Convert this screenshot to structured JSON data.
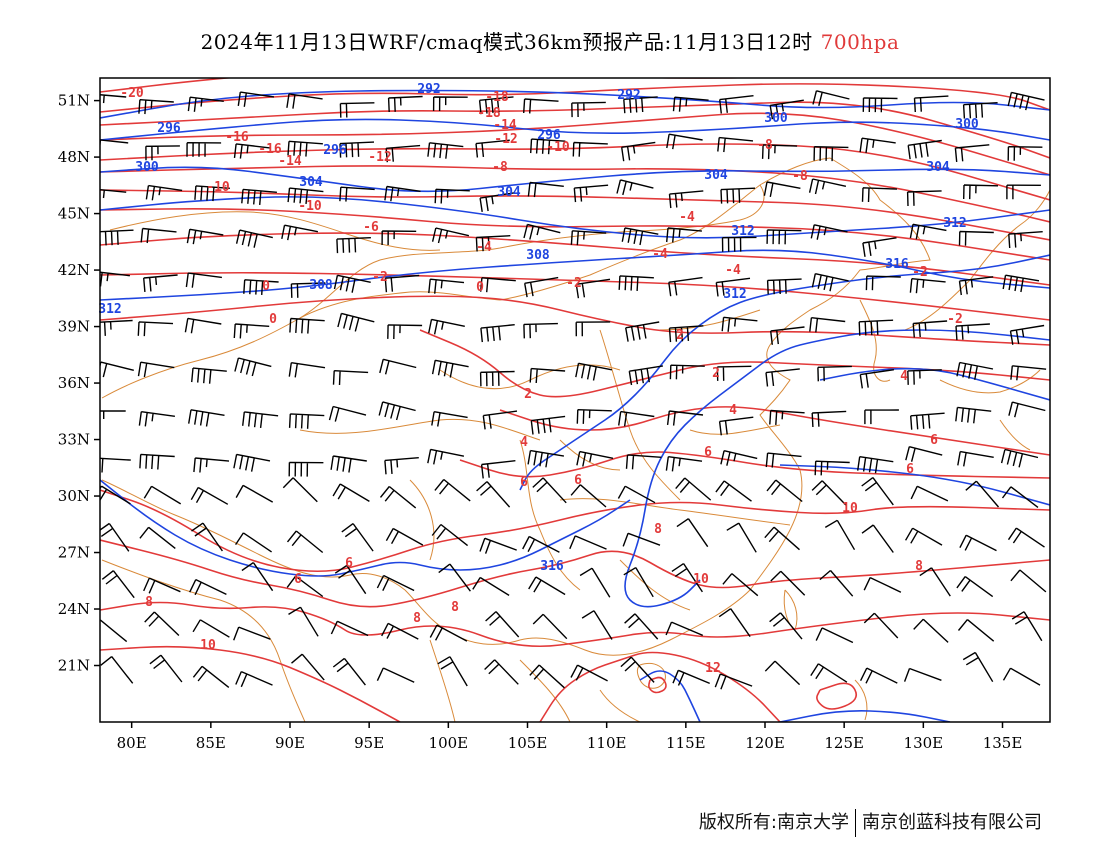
{
  "title": {
    "main": "2024年11月13日WRF/cmaq模式36km预报产品:11月13日12时",
    "level": "700hpa",
    "level_color": "#e03a3a"
  },
  "footer": {
    "left": "版权所有:南京大学",
    "right": "南京创蓝科技有限公司"
  },
  "axes": {
    "lon_labels": [
      "80E",
      "85E",
      "90E",
      "95E",
      "100E",
      "105E",
      "110E",
      "115E",
      "120E",
      "125E",
      "130E",
      "135E"
    ],
    "lon_values": [
      80,
      85,
      90,
      95,
      100,
      105,
      110,
      115,
      120,
      125,
      130,
      135
    ],
    "lat_labels": [
      "51N",
      "48N",
      "45N",
      "42N",
      "39N",
      "36N",
      "33N",
      "30N",
      "27N",
      "24N",
      "21N"
    ],
    "lat_values": [
      51,
      48,
      45,
      42,
      39,
      36,
      33,
      30,
      27,
      24,
      21
    ],
    "lon_range": [
      78,
      138
    ],
    "lat_range": [
      18,
      52.2
    ]
  },
  "colors": {
    "temperature": "#e23a3a",
    "geopotential": "#1f45e0",
    "boundaries": "#d98a3a",
    "wind_barbs": "#000000"
  },
  "geopotential_labels": [
    "292",
    "292",
    "296",
    "296",
    "296",
    "300",
    "300",
    "300",
    "304",
    "304",
    "304",
    "304",
    "308",
    "308",
    "312",
    "312",
    "312",
    "312",
    "316",
    "316"
  ],
  "temperature_labels": [
    "-20",
    "-18",
    "-18",
    "-16",
    "-16",
    "-14",
    "-14",
    "-12",
    "-12",
    "-10",
    "-10",
    "-10",
    "-8",
    "-8",
    "-8",
    "-6",
    "-4",
    "-4",
    "-4",
    "-4",
    "-2",
    "-2",
    "-2",
    "-2",
    "0",
    "0",
    "0",
    "2",
    "2",
    "2",
    "4",
    "4",
    "4",
    "6",
    "6",
    "6",
    "6",
    "6",
    "6",
    "6",
    "8",
    "8",
    "8",
    "8",
    "8",
    "10",
    "10",
    "10",
    "12"
  ]
}
